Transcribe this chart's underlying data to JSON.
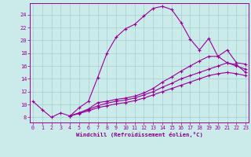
{
  "bg_color": "#cbeaea",
  "line_color": "#990099",
  "grid_color": "#aad4d4",
  "xlabel": "Windchill (Refroidissement éolien,°C)",
  "xlabel_color": "#880088",
  "ylabel_ticks": [
    8,
    10,
    12,
    14,
    16,
    18,
    20,
    22,
    24
  ],
  "xlabel_ticks": [
    0,
    1,
    2,
    3,
    4,
    5,
    6,
    7,
    8,
    9,
    10,
    11,
    12,
    13,
    14,
    15,
    16,
    17,
    18,
    19,
    20,
    21,
    22,
    23
  ],
  "xlim": [
    -0.3,
    23.3
  ],
  "ylim": [
    7.2,
    25.8
  ],
  "curves": [
    {
      "x": [
        0,
        1,
        2,
        3,
        4,
        5,
        6,
        7,
        8,
        9,
        10,
        11,
        12,
        13,
        14,
        15,
        16,
        17,
        18,
        19,
        20,
        21,
        22,
        23
      ],
      "y": [
        10.5,
        9.2,
        8.0,
        8.7,
        8.2,
        9.5,
        10.5,
        14.2,
        18.0,
        20.5,
        21.8,
        22.5,
        23.8,
        25.0,
        25.3,
        24.8,
        22.8,
        20.2,
        18.5,
        20.3,
        17.5,
        16.5,
        16.2,
        15.0
      ]
    },
    {
      "x": [
        4,
        5,
        6,
        7,
        8,
        9,
        10,
        11,
        12,
        13,
        14,
        15,
        16,
        17,
        18,
        19,
        20,
        21,
        22,
        23
      ],
      "y": [
        8.2,
        8.7,
        9.3,
        10.3,
        10.5,
        10.8,
        11.0,
        11.3,
        11.8,
        12.5,
        13.5,
        14.3,
        15.2,
        16.0,
        16.8,
        17.5,
        17.5,
        18.5,
        16.5,
        16.3
      ]
    },
    {
      "x": [
        4,
        5,
        6,
        7,
        8,
        9,
        10,
        11,
        12,
        13,
        14,
        15,
        16,
        17,
        18,
        19,
        20,
        21,
        22,
        23
      ],
      "y": [
        8.2,
        8.7,
        9.2,
        9.8,
        10.2,
        10.5,
        10.7,
        11.0,
        11.5,
        12.0,
        12.7,
        13.3,
        14.0,
        14.5,
        15.0,
        15.5,
        16.0,
        16.5,
        16.0,
        15.5
      ]
    },
    {
      "x": [
        4,
        5,
        6,
        7,
        8,
        9,
        10,
        11,
        12,
        13,
        14,
        15,
        16,
        17,
        18,
        19,
        20,
        21,
        22,
        23
      ],
      "y": [
        8.2,
        8.6,
        9.0,
        9.5,
        9.8,
        10.1,
        10.3,
        10.6,
        11.0,
        11.5,
        12.0,
        12.5,
        13.0,
        13.5,
        14.0,
        14.5,
        14.8,
        15.0,
        14.8,
        14.5
      ]
    }
  ]
}
